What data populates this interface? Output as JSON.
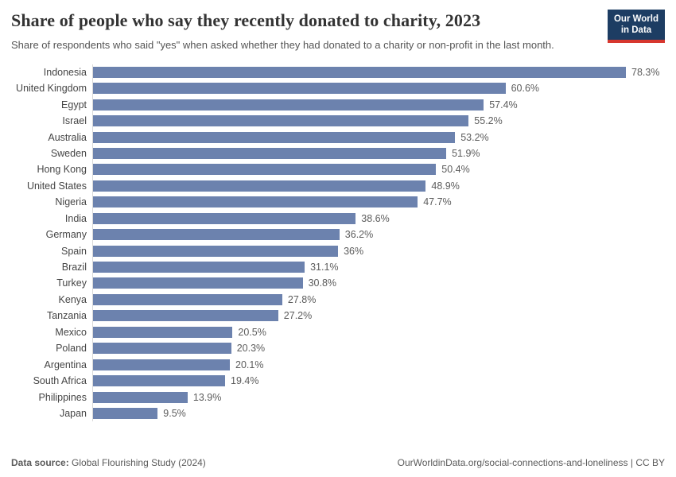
{
  "header": {
    "title": "Share of people who say they recently donated to charity, 2023",
    "subtitle": "Share of respondents who said \"yes\" when asked whether they had donated to a charity or non-profit in the last month."
  },
  "logo": {
    "line1": "Our World",
    "line2": "in Data",
    "background_color": "#1d3d63",
    "accent_color": "#d7372f"
  },
  "chart_data": {
    "type": "bar",
    "orientation": "horizontal",
    "title": "Share of people who say they recently donated to charity, 2023",
    "xlabel": "",
    "ylabel": "",
    "xlim": [
      0,
      80
    ],
    "grid": false,
    "legend": false,
    "bar_color": "#6c82ae",
    "categories": [
      "Indonesia",
      "United Kingdom",
      "Egypt",
      "Israel",
      "Australia",
      "Sweden",
      "Hong Kong",
      "United States",
      "Nigeria",
      "India",
      "Germany",
      "Spain",
      "Brazil",
      "Turkey",
      "Kenya",
      "Tanzania",
      "Mexico",
      "Poland",
      "Argentina",
      "South Africa",
      "Philippines",
      "Japan"
    ],
    "values": [
      78.3,
      60.6,
      57.4,
      55.2,
      53.2,
      51.9,
      50.4,
      48.9,
      47.7,
      38.6,
      36.2,
      36,
      31.1,
      30.8,
      27.8,
      27.2,
      20.5,
      20.3,
      20.1,
      19.4,
      13.9,
      9.5
    ],
    "value_labels": [
      "78.3%",
      "60.6%",
      "57.4%",
      "55.2%",
      "53.2%",
      "51.9%",
      "50.4%",
      "48.9%",
      "47.7%",
      "38.6%",
      "36.2%",
      "36%",
      "31.1%",
      "30.8%",
      "27.8%",
      "27.2%",
      "20.5%",
      "20.3%",
      "20.1%",
      "19.4%",
      "13.9%",
      "9.5%"
    ]
  },
  "footer": {
    "source_label": "Data source:",
    "source_value": " Global Flourishing Study (2024)",
    "credit": "OurWorldinData.org/social-connections-and-loneliness | CC BY"
  }
}
